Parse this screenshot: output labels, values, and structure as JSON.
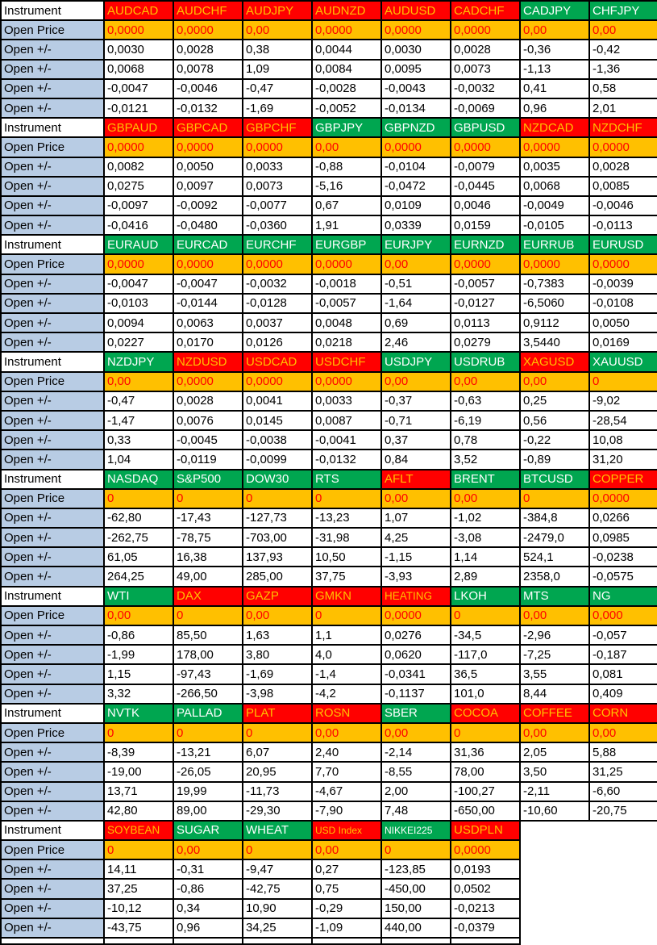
{
  "grid": {
    "row_labels": {
      "instrument": "Instrument",
      "open_price": "Open Price",
      "open_change": "Open +/-"
    },
    "colors": {
      "header_red_bg": "#FF0000",
      "header_red_text": "#FFC000",
      "header_green_bg": "#00A650",
      "header_green_text": "#FFFFFF",
      "open_price_bg": "#FFC000",
      "open_price_text": "#FF0000",
      "label_blue_bg": "#B8CCE4",
      "border": "#000000"
    },
    "blocks": [
      {
        "instruments": [
          {
            "name": "AUDCAD",
            "bg": "red"
          },
          {
            "name": "AUDCHF",
            "bg": "red"
          },
          {
            "name": "AUDJPY",
            "bg": "red"
          },
          {
            "name": "AUDNZD",
            "bg": "red"
          },
          {
            "name": "AUDUSD",
            "bg": "red"
          },
          {
            "name": "CADCHF",
            "bg": "red"
          },
          {
            "name": "CADJPY",
            "bg": "green"
          },
          {
            "name": "CHFJPY",
            "bg": "green"
          }
        ],
        "open_price": [
          "0,0000",
          "0,0000",
          "0,00",
          "0,0000",
          "0,0000",
          "0,0000",
          "0,00",
          "0,00"
        ],
        "change_rows": [
          [
            "0,0030",
            "0,0028",
            "0,38",
            "0,0044",
            "0,0030",
            "0,0028",
            "-0,36",
            "-0,42"
          ],
          [
            "0,0068",
            "0,0078",
            "1,09",
            "0,0084",
            "0,0095",
            "0,0073",
            "-1,13",
            "-1,36"
          ],
          [
            "-0,0047",
            "-0,0046",
            "-0,47",
            "-0,0028",
            "-0,0043",
            "-0,0032",
            "0,41",
            "0,58"
          ],
          [
            "-0,0121",
            "-0,0132",
            "-1,69",
            "-0,0052",
            "-0,0134",
            "-0,0069",
            "0,96",
            "2,01"
          ]
        ]
      },
      {
        "instruments": [
          {
            "name": "GBPAUD",
            "bg": "red"
          },
          {
            "name": "GBPCAD",
            "bg": "red"
          },
          {
            "name": "GBPCHF",
            "bg": "red"
          },
          {
            "name": "GBPJPY",
            "bg": "green"
          },
          {
            "name": "GBPNZD",
            "bg": "green"
          },
          {
            "name": "GBPUSD",
            "bg": "green"
          },
          {
            "name": "NZDCAD",
            "bg": "red"
          },
          {
            "name": "NZDCHF",
            "bg": "red"
          }
        ],
        "open_price": [
          "0,0000",
          "0,0000",
          "0,0000",
          "0,00",
          "0,0000",
          "0,0000",
          "0,0000",
          "0,0000"
        ],
        "change_rows": [
          [
            "0,0082",
            "0,0050",
            "0,0033",
            "-0,88",
            "-0,0104",
            "-0,0079",
            "0,0035",
            "0,0028"
          ],
          [
            "0,0275",
            "0,0097",
            "0,0073",
            "-5,16",
            "-0,0472",
            "-0,0445",
            "0,0068",
            "0,0085"
          ],
          [
            "-0,0097",
            "-0,0092",
            "-0,0077",
            "0,67",
            "0,0109",
            "0,0046",
            "-0,0049",
            "-0,0046"
          ],
          [
            "-0,0416",
            "-0,0480",
            "-0,0360",
            "1,91",
            "0,0339",
            "0,0159",
            "-0,0105",
            "-0,0113"
          ]
        ]
      },
      {
        "instruments": [
          {
            "name": "EURAUD",
            "bg": "green"
          },
          {
            "name": "EURCAD",
            "bg": "green"
          },
          {
            "name": "EURCHF",
            "bg": "green"
          },
          {
            "name": "EURGBP",
            "bg": "green"
          },
          {
            "name": "EURJPY",
            "bg": "green"
          },
          {
            "name": "EURNZD",
            "bg": "green"
          },
          {
            "name": "EURRUB",
            "bg": "green"
          },
          {
            "name": "EURUSD",
            "bg": "green"
          }
        ],
        "open_price": [
          "0,0000",
          "0,0000",
          "0,0000",
          "0,0000",
          "0,00",
          "0,0000",
          "0,0000",
          "0,0000"
        ],
        "change_rows": [
          [
            "-0,0047",
            "-0,0047",
            "-0,0032",
            "-0,0018",
            "-0,51",
            "-0,0057",
            "-0,7383",
            "-0,0039"
          ],
          [
            "-0,0103",
            "-0,0144",
            "-0,0128",
            "-0,0057",
            "-1,64",
            "-0,0127",
            "-6,5060",
            "-0,0108"
          ],
          [
            "0,0094",
            "0,0063",
            "0,0037",
            "0,0048",
            "0,69",
            "0,0113",
            "0,9112",
            "0,0050"
          ],
          [
            "0,0227",
            "0,0170",
            "0,0126",
            "0,0218",
            "2,46",
            "0,0279",
            "3,5440",
            "0,0169"
          ]
        ]
      },
      {
        "instruments": [
          {
            "name": "NZDJPY",
            "bg": "green"
          },
          {
            "name": "NZDUSD",
            "bg": "red"
          },
          {
            "name": "USDCAD",
            "bg": "red"
          },
          {
            "name": "USDCHF",
            "bg": "red"
          },
          {
            "name": "USDJPY",
            "bg": "green"
          },
          {
            "name": "USDRUB",
            "bg": "green"
          },
          {
            "name": "XAGUSD",
            "bg": "red"
          },
          {
            "name": "XAUUSD",
            "bg": "green"
          }
        ],
        "open_price": [
          "0,00",
          "0,0000",
          "0,0000",
          "0,0000",
          "0,00",
          "0,00",
          "0,00",
          "0"
        ],
        "change_rows": [
          [
            "-0,47",
            "0,0028",
            "0,0041",
            "0,0033",
            "-0,37",
            "-0,63",
            "0,25",
            "-9,02"
          ],
          [
            "-1,47",
            "0,0076",
            "0,0145",
            "0,0087",
            "-0,71",
            "-6,19",
            "0,56",
            "-28,54"
          ],
          [
            "0,33",
            "-0,0045",
            "-0,0038",
            "-0,0041",
            "0,37",
            "0,78",
            "-0,22",
            "10,08"
          ],
          [
            "1,04",
            "-0,0119",
            "-0,0099",
            "-0,0132",
            "0,84",
            "3,52",
            "-0,89",
            "31,20"
          ]
        ]
      },
      {
        "instruments": [
          {
            "name": "NASDAQ",
            "bg": "green"
          },
          {
            "name": "S&P500",
            "bg": "green"
          },
          {
            "name": "DOW30",
            "bg": "green"
          },
          {
            "name": "RTS",
            "bg": "green"
          },
          {
            "name": "AFLT",
            "bg": "red"
          },
          {
            "name": "BRENT",
            "bg": "green"
          },
          {
            "name": "BTCUSD",
            "bg": "green"
          },
          {
            "name": "COPPER",
            "bg": "red"
          }
        ],
        "open_price": [
          "0",
          "0",
          "0",
          "0",
          "0,00",
          "0,00",
          "0",
          "0,0000"
        ],
        "change_rows": [
          [
            "-62,80",
            "-17,43",
            "-127,73",
            "-13,23",
            "1,07",
            "-1,02",
            "-384,8",
            "0,0266"
          ],
          [
            "-262,75",
            "-78,75",
            "-703,00",
            "-31,98",
            "4,25",
            "-3,08",
            "-2479,0",
            "0,0985"
          ],
          [
            "61,05",
            "16,38",
            "137,93",
            "10,50",
            "-1,15",
            "1,14",
            "524,1",
            "-0,0238"
          ],
          [
            "264,25",
            "49,00",
            "285,00",
            "37,75",
            "-3,93",
            "2,89",
            "2358,0",
            "-0,0575"
          ]
        ]
      },
      {
        "instruments": [
          {
            "name": "WTI",
            "bg": "green"
          },
          {
            "name": "DAX",
            "bg": "red"
          },
          {
            "name": "GAZP",
            "bg": "red"
          },
          {
            "name": "GMKN",
            "bg": "red"
          },
          {
            "name": "HEATING",
            "bg": "red"
          },
          {
            "name": "LKOH",
            "bg": "green"
          },
          {
            "name": "MTS",
            "bg": "green"
          },
          {
            "name": "NG",
            "bg": "green"
          }
        ],
        "open_price": [
          "0,00",
          "0",
          "0,00",
          "0",
          "0,0000",
          "0",
          "0,00",
          "0,000"
        ],
        "change_rows": [
          [
            "-0,86",
            "85,50",
            "1,63",
            "1,1",
            "0,0276",
            "-34,5",
            "-2,96",
            "-0,057"
          ],
          [
            "-1,99",
            "178,00",
            "3,80",
            "4,0",
            "0,0620",
            "-117,0",
            "-7,25",
            "-0,187"
          ],
          [
            "1,15",
            "-97,43",
            "-1,69",
            "-1,4",
            "-0,0341",
            "36,5",
            "3,55",
            "0,081"
          ],
          [
            "3,32",
            "-266,50",
            "-3,98",
            "-4,2",
            "-0,1137",
            "101,0",
            "8,44",
            "0,409"
          ]
        ]
      },
      {
        "instruments": [
          {
            "name": "NVTK",
            "bg": "green"
          },
          {
            "name": "PALLAD",
            "bg": "green"
          },
          {
            "name": "PLAT",
            "bg": "red"
          },
          {
            "name": "ROSN",
            "bg": "red"
          },
          {
            "name": "SBER",
            "bg": "green"
          },
          {
            "name": "COCOA",
            "bg": "red"
          },
          {
            "name": "COFFEE",
            "bg": "red"
          },
          {
            "name": "CORN",
            "bg": "red"
          }
        ],
        "open_price": [
          "0",
          "0",
          "0",
          "0,00",
          "0,00",
          "0",
          "0,00",
          "0,00"
        ],
        "change_rows": [
          [
            "-8,39",
            "-13,21",
            "6,07",
            "2,40",
            "-2,14",
            "31,36",
            "2,05",
            "5,88"
          ],
          [
            "-19,00",
            "-26,05",
            "20,95",
            "7,70",
            "-8,55",
            "78,00",
            "3,50",
            "31,25"
          ],
          [
            "13,71",
            "19,99",
            "-11,73",
            "-4,67",
            "2,00",
            "-100,27",
            "-2,11",
            "-6,60"
          ],
          [
            "42,80",
            "89,00",
            "-29,30",
            "-7,90",
            "7,48",
            "-650,00",
            "-10,60",
            "-20,75"
          ]
        ]
      },
      {
        "instruments": [
          {
            "name": "SOYBEAN",
            "bg": "red"
          },
          {
            "name": "SUGAR",
            "bg": "green"
          },
          {
            "name": "WHEAT",
            "bg": "green"
          },
          {
            "name": "USD Index",
            "bg": "red"
          },
          {
            "name": "NIKKEI225",
            "bg": "green"
          },
          {
            "name": "USDPLN",
            "bg": "red"
          }
        ],
        "open_price": [
          "0",
          "0,00",
          "0",
          "0,00",
          "0",
          "0,0000"
        ],
        "change_rows": [
          [
            "14,11",
            "-0,31",
            "-9,47",
            "0,27",
            "-123,85",
            "0,0193"
          ],
          [
            "37,25",
            "-0,86",
            "-42,75",
            "0,75",
            "-450,00",
            "0,0502"
          ],
          [
            "-10,12",
            "0,34",
            "10,90",
            "-0,29",
            "150,00",
            "-0,0213"
          ],
          [
            "-43,75",
            "0,96",
            "34,25",
            "-1,09",
            "440,00",
            "-0,0379"
          ]
        ]
      }
    ],
    "partial_bottom_row": {
      "visible_columns": 7
    }
  }
}
